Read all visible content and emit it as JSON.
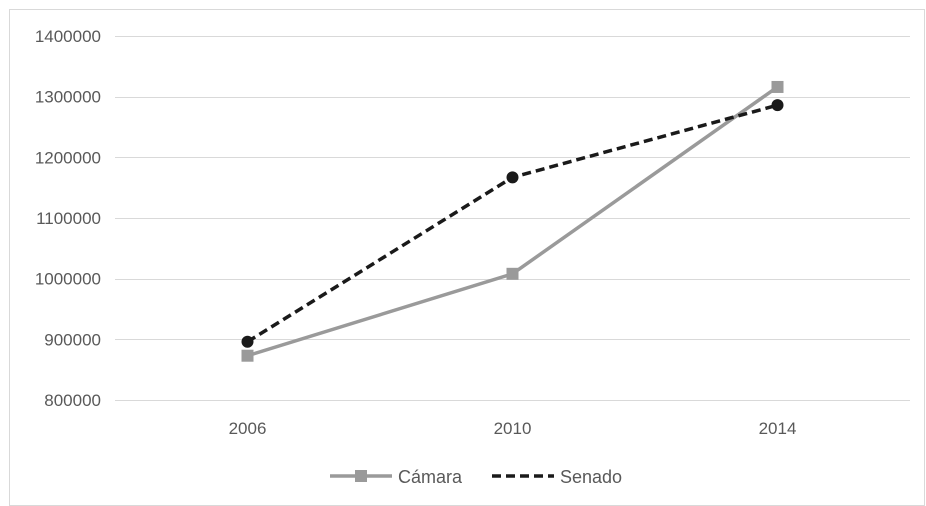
{
  "chart_data": {
    "type": "line",
    "title": "",
    "xlabel": "",
    "ylabel": "",
    "categories": [
      "2006",
      "2010",
      "2014"
    ],
    "ylim": [
      800000,
      1400000
    ],
    "yticks": [
      800000,
      900000,
      1000000,
      1100000,
      1200000,
      1300000,
      1400000
    ],
    "yticks_labels": [
      "800000",
      "900000",
      "1000000",
      "1100000",
      "1200000",
      "1300000",
      "1400000"
    ],
    "grid": true,
    "legend": "bottom",
    "series": [
      {
        "name": "Cámara",
        "values": [
          873000,
          1008000,
          1316000
        ],
        "color": "#9a9a9a",
        "line_style": "solid",
        "marker": "square"
      },
      {
        "name": "Senado",
        "values": [
          896000,
          1167000,
          1286000
        ],
        "color": "#1a1a1a",
        "line_style": "dashed",
        "marker": "circle"
      }
    ]
  }
}
